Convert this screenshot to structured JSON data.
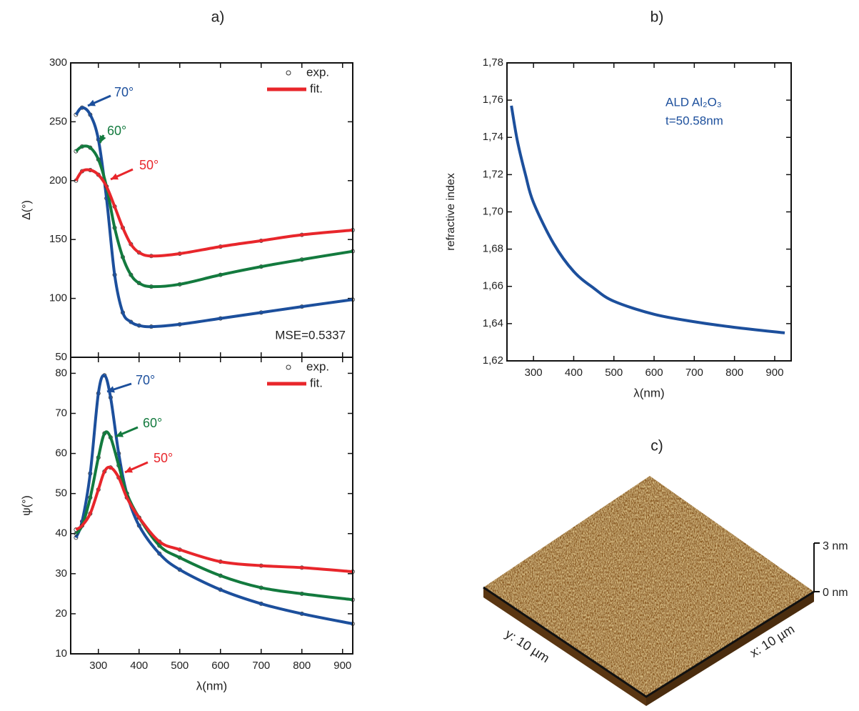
{
  "panel_labels": [
    "a)",
    "b)",
    "c)"
  ],
  "chart_data": [
    {
      "type": "line",
      "ylabel": "Δ(°)",
      "x": [
        245,
        260,
        280,
        300,
        320,
        340,
        360,
        380,
        400,
        430,
        500,
        600,
        700,
        800,
        925
      ],
      "series": [
        {
          "name": "70°",
          "color": "#1c4f9c",
          "values": [
            256,
            262,
            256,
            235,
            185,
            120,
            88,
            80,
            77,
            76,
            78,
            83,
            88,
            93,
            99
          ]
        },
        {
          "name": "60°",
          "color": "#137a3e",
          "values": [
            225,
            229,
            228,
            218,
            195,
            160,
            135,
            120,
            113,
            110,
            112,
            120,
            127,
            133,
            140
          ]
        },
        {
          "name": "50°",
          "color": "#e8262b",
          "values": [
            200,
            208,
            209,
            205,
            195,
            178,
            160,
            146,
            139,
            136,
            138,
            144,
            149,
            154,
            158
          ]
        }
      ],
      "xlim": [
        232,
        925
      ],
      "xticks": [
        300,
        400,
        500,
        600,
        700,
        800,
        900
      ],
      "ylim": [
        50,
        300
      ],
      "yticks": [
        50,
        100,
        150,
        200,
        250,
        300
      ],
      "legend": {
        "labels": [
          "exp.",
          "fit."
        ],
        "position": "upper right",
        "fit_color": "#e8262b"
      },
      "annotation": "MSE=0.5337"
    },
    {
      "type": "line",
      "ylabel": "ψ(°)",
      "xlabel": "λ(nm)",
      "x": [
        245,
        260,
        280,
        300,
        315,
        330,
        350,
        370,
        400,
        450,
        500,
        600,
        700,
        800,
        925
      ],
      "series": [
        {
          "name": "70°",
          "color": "#1c4f9c",
          "values": [
            39,
            43,
            55,
            75,
            79.5,
            74,
            60,
            50,
            42,
            35,
            31,
            26,
            22.5,
            20,
            17.5
          ]
        },
        {
          "name": "60°",
          "color": "#137a3e",
          "values": [
            40,
            42,
            49,
            59,
            65,
            64,
            57,
            50,
            44,
            37,
            34,
            29.5,
            26.5,
            25,
            23.5
          ]
        },
        {
          "name": "50°",
          "color": "#e8262b",
          "values": [
            41,
            42,
            45,
            51,
            55.5,
            56.5,
            54,
            49,
            44,
            38,
            36,
            33,
            32,
            31.5,
            30.5
          ]
        }
      ],
      "xlim": [
        232,
        925
      ],
      "xticks": [
        300,
        400,
        500,
        600,
        700,
        800,
        900
      ],
      "ylim": [
        10,
        84
      ],
      "yticks": [
        10,
        20,
        30,
        40,
        50,
        60,
        70,
        80
      ],
      "legend": {
        "labels": [
          "exp.",
          "fit."
        ],
        "position": "upper right",
        "fit_color": "#e8262b"
      }
    },
    {
      "type": "line",
      "ylabel": "refractive index",
      "xlabel": "λ(nm)",
      "x": [
        245,
        260,
        280,
        300,
        350,
        400,
        450,
        500,
        600,
        700,
        800,
        925
      ],
      "values": [
        1.757,
        1.738,
        1.72,
        1.705,
        1.683,
        1.668,
        1.659,
        1.652,
        1.645,
        1.641,
        1.638,
        1.635
      ],
      "color": "#1c4f9c",
      "xlim": [
        234,
        941
      ],
      "xticks": [
        300,
        400,
        500,
        600,
        700,
        800,
        900
      ],
      "ylim": [
        1.62,
        1.78
      ],
      "yticks": [
        {
          "value": 1.62,
          "label": "1,62"
        },
        {
          "value": 1.64,
          "label": "1,64"
        },
        {
          "value": 1.66,
          "label": "1,66"
        },
        {
          "value": 1.68,
          "label": "1,68"
        },
        {
          "value": 1.7,
          "label": "1,70"
        },
        {
          "value": 1.72,
          "label": "1,72"
        },
        {
          "value": 1.74,
          "label": "1,74"
        },
        {
          "value": 1.76,
          "label": "1,76"
        },
        {
          "value": 1.78,
          "label": "1,78"
        }
      ],
      "annotations": [
        "ALD Al₂O₃",
        "t=50.58nm"
      ]
    }
  ],
  "afm_image": {
    "y_label": "y: 10 µm",
    "x_label": "x: 10 µm",
    "scale_labels": [
      "3 nm",
      "0 nm"
    ]
  }
}
